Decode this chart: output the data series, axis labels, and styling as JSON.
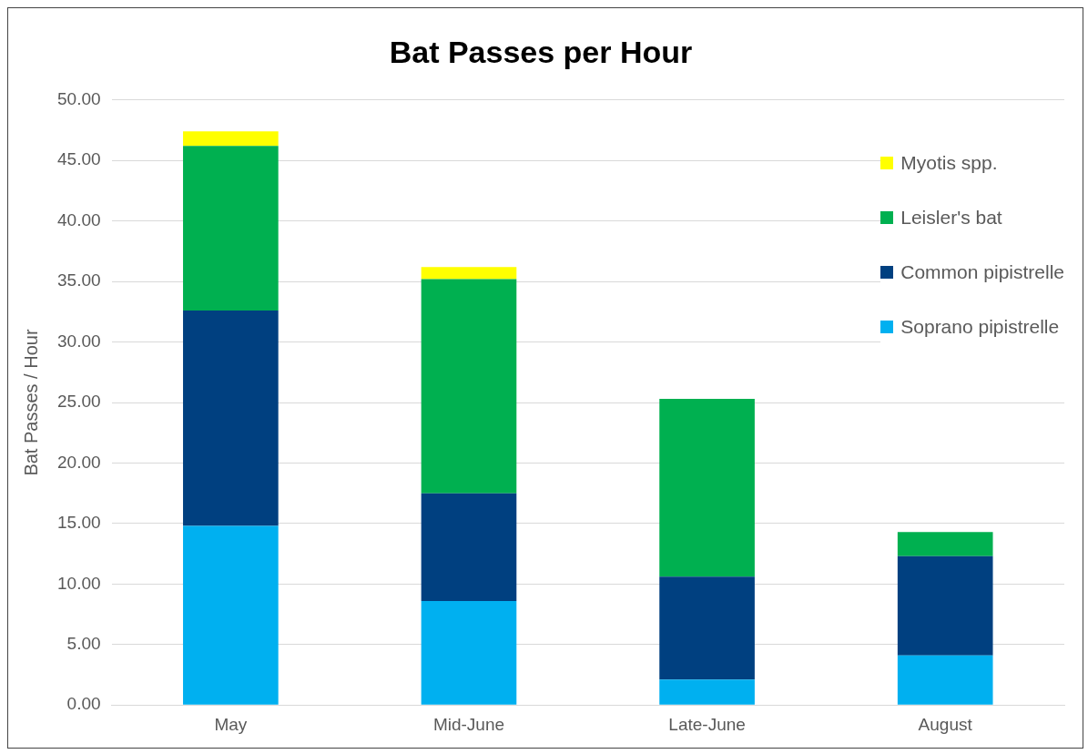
{
  "chart_data": {
    "type": "bar",
    "title": "Bat Passes per Hour",
    "ylabel": "Bat Passes / Hour",
    "categories": [
      "May",
      "Mid-June",
      "Late-June",
      "August"
    ],
    "stacked": true,
    "series": [
      {
        "name": "Soprano pipistrelle",
        "color": "#00b0f0",
        "values": [
          14.8,
          8.6,
          2.1,
          4.1
        ]
      },
      {
        "name": "Common pipistrelle",
        "color": "#004080",
        "values": [
          17.8,
          8.9,
          8.5,
          8.2
        ]
      },
      {
        "name": "Leisler's bat",
        "color": "#00b050",
        "values": [
          13.6,
          17.7,
          14.7,
          2.0
        ]
      },
      {
        "name": "Myotis spp.",
        "color": "#ffff00",
        "values": [
          1.2,
          1.0,
          0,
          0
        ]
      }
    ],
    "ylim": [
      0,
      50
    ],
    "yticks": [
      {
        "value": 0,
        "label": "0.00"
      },
      {
        "value": 5,
        "label": "5.00"
      },
      {
        "value": 10,
        "label": "10.00"
      },
      {
        "value": 15,
        "label": "15.00"
      },
      {
        "value": 20,
        "label": "20.00"
      },
      {
        "value": 25,
        "label": "25.00"
      },
      {
        "value": 30,
        "label": "30.00"
      },
      {
        "value": 35,
        "label": "35.00"
      },
      {
        "value": 40,
        "label": "40.00"
      },
      {
        "value": 45,
        "label": "45.00"
      },
      {
        "value": 50,
        "label": "50.00"
      }
    ],
    "grid": "y",
    "legend": "top right"
  }
}
